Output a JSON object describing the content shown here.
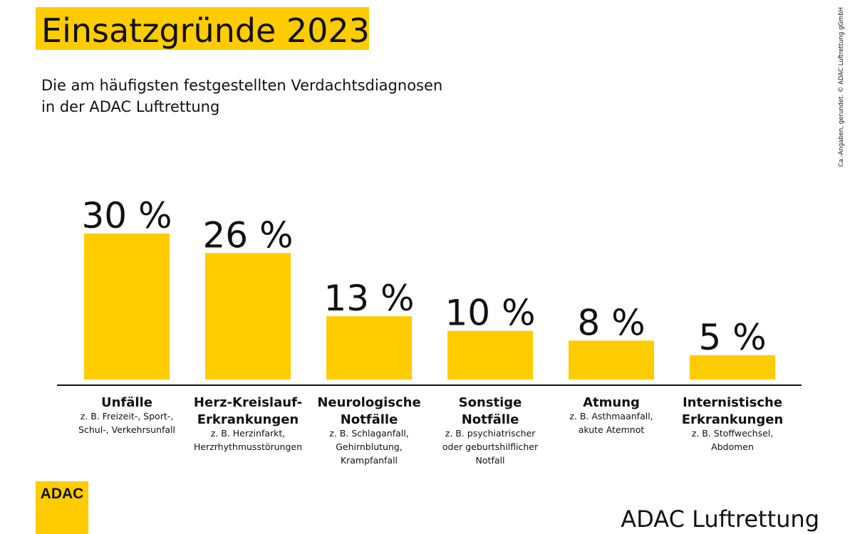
{
  "chart_data": {
    "type": "bar",
    "title": "Einsatzgründe 2023",
    "subtitle": [
      "Die am häufigsten festgestellten Verdachtsdiagnosen",
      "in der ADAC Luftrettung"
    ],
    "categories": [
      [
        "Unfälle"
      ],
      [
        "Herz-Kreislauf-",
        "Erkrankungen"
      ],
      [
        "Neurologische",
        "Notfälle"
      ],
      [
        "Sonstige",
        "Notfälle"
      ],
      [
        "Atmung"
      ],
      [
        "Internistische",
        "Erkrankungen"
      ]
    ],
    "descriptions": [
      [
        "z. B. Freizeit-, Sport-,",
        "Schul-, Verkehrsunfall"
      ],
      [
        "z. B. Herzinfarkt,",
        "Herzrhythmusstörungen"
      ],
      [
        "z. B. Schlaganfall,",
        "Gehirnblutung,",
        "Krampfanfall"
      ],
      [
        "z. B. psychiatrischer",
        "oder geburtshilflicher",
        "Notfall"
      ],
      [
        "z. B. Asthmaanfall,",
        "akute Atemnot"
      ],
      [
        "z. B. Stoffwechsel,",
        "Abdomen"
      ]
    ],
    "values": [
      30,
      26,
      13,
      10,
      8,
      5
    ],
    "value_labels": [
      "30 %",
      "26 %",
      "13 %",
      "10 %",
      "8 %",
      "5 %"
    ],
    "color": "#ffcc00",
    "footnote": "Ca.-Angaben, gerundet. © ADAC Luftrettung gGmbH",
    "logo": "ADAC",
    "brand": "ADAC Luftrettung"
  }
}
